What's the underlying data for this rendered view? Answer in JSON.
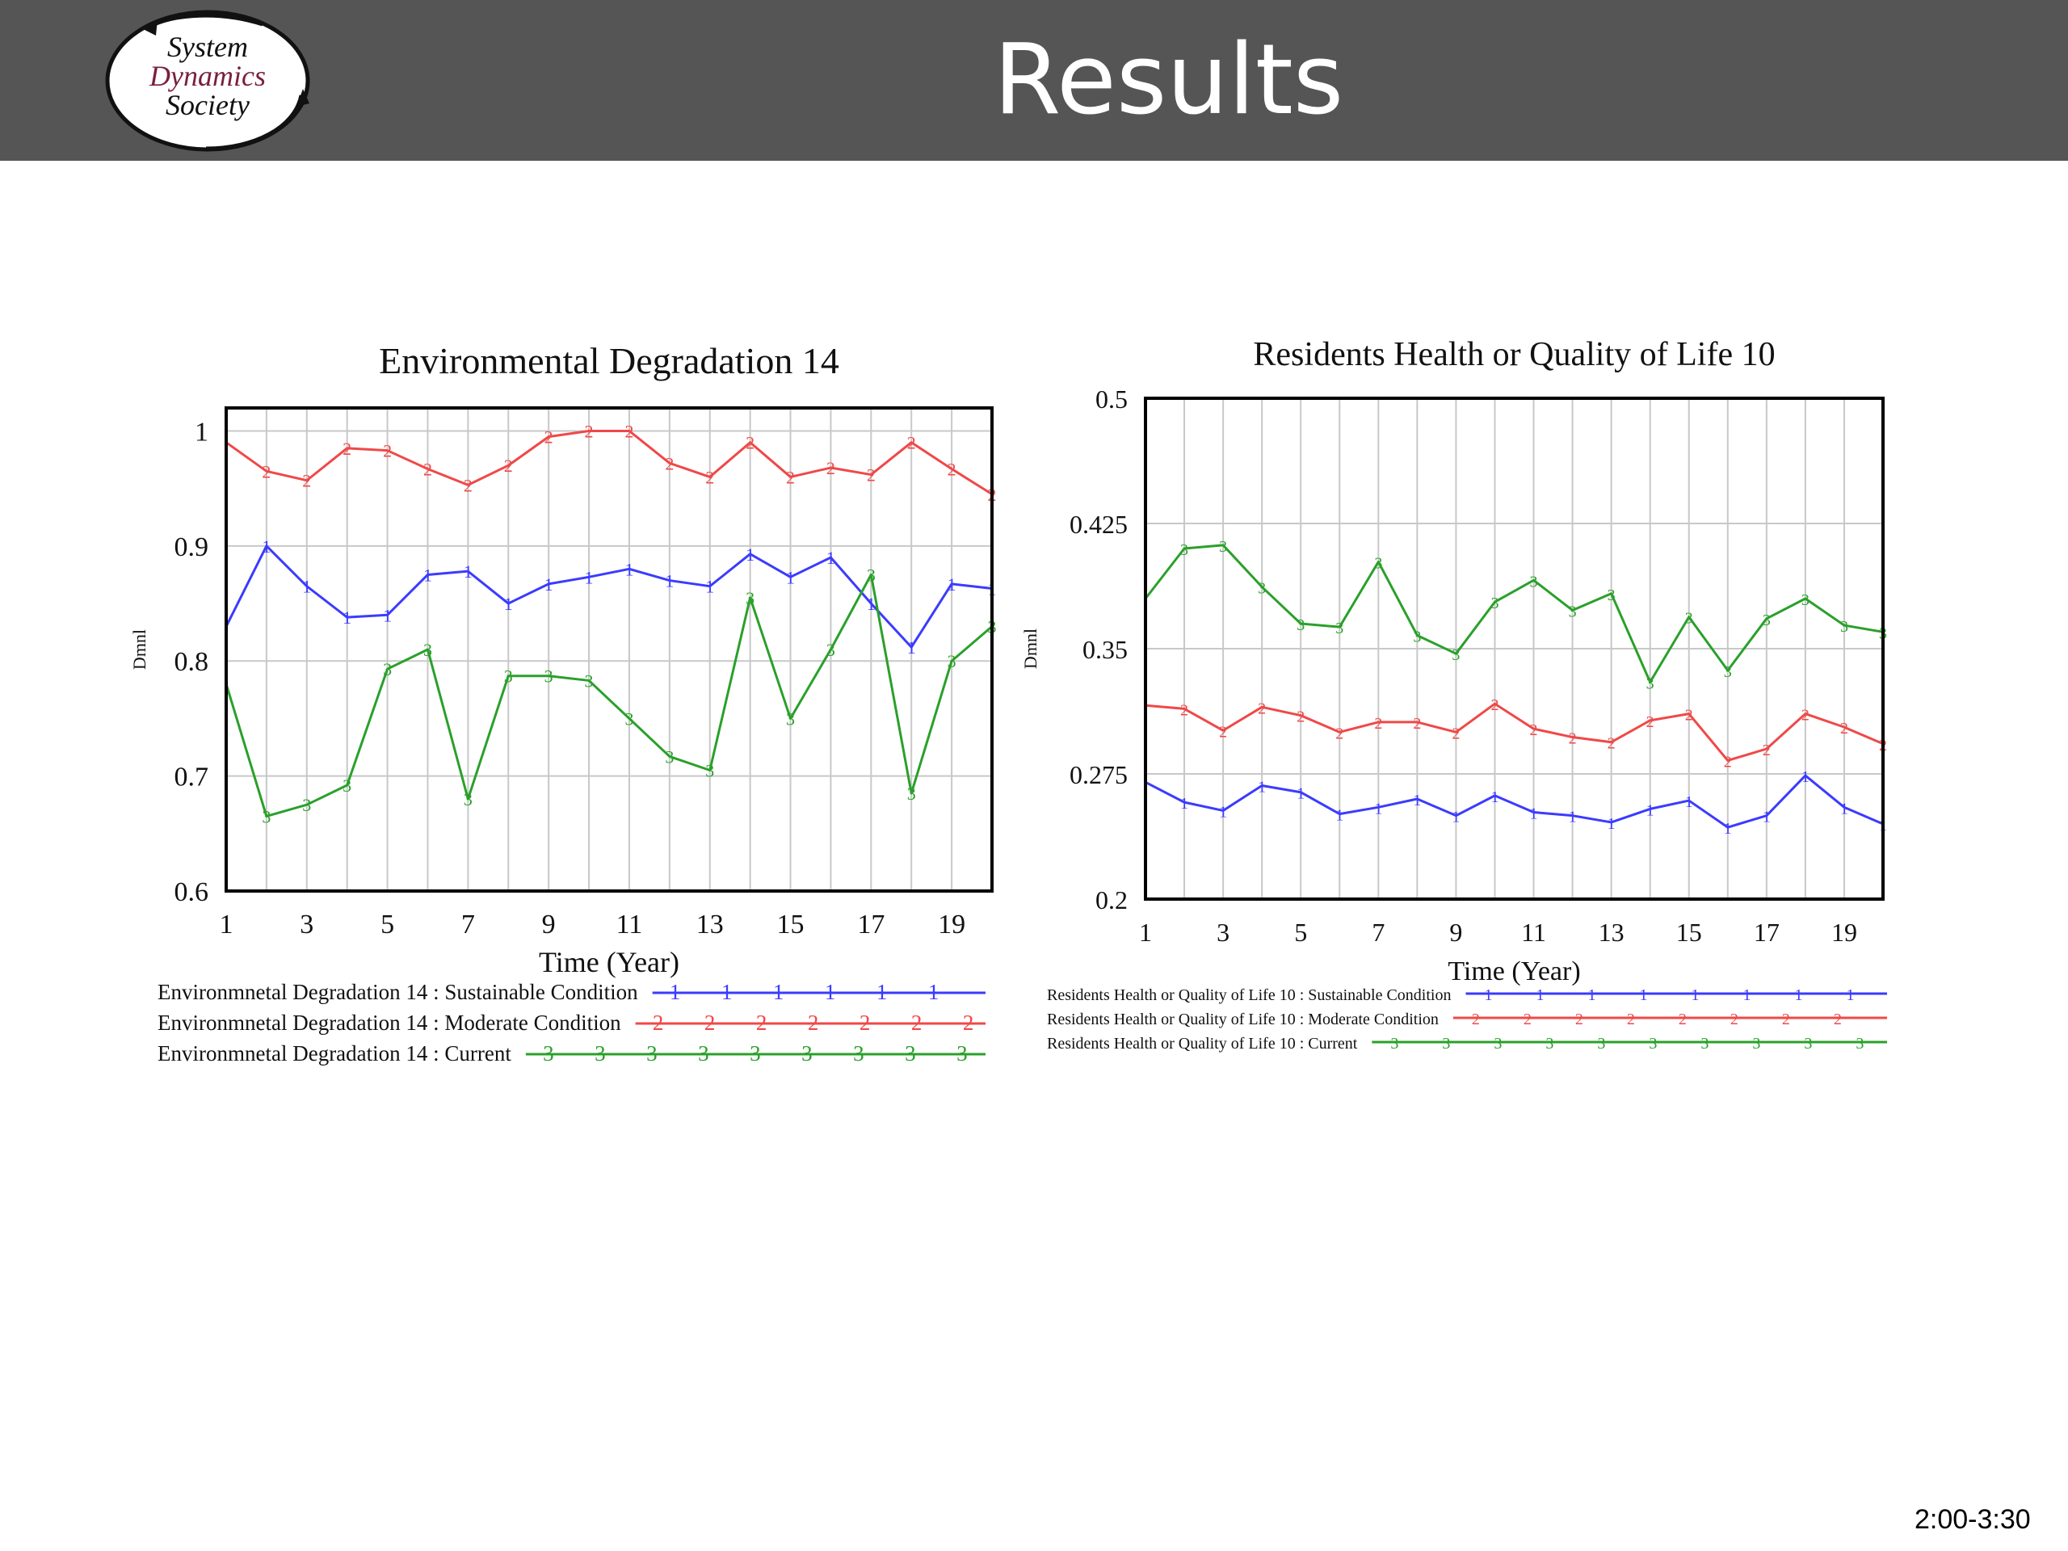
{
  "slide": {
    "title": "Results",
    "footnote": "2:00-3:30",
    "logo": {
      "line1": "System",
      "line2": "Dynamics",
      "line3": "Society"
    }
  },
  "colors": {
    "header": "#555555",
    "sustainable": "#3b3bff",
    "moderate": "#f04848",
    "current": "#2aa02a",
    "grid": "#c8c8c8"
  },
  "chart_data": [
    {
      "type": "line",
      "title": "Environmental Degradation 14",
      "xlabel": "Time (Year)",
      "ylabel": "Dmnl",
      "xlim": [
        1,
        20
      ],
      "ylim": [
        0.6,
        1.02
      ],
      "yticks": [
        0.6,
        0.7,
        0.8,
        0.9,
        1
      ],
      "ytick_labels": [
        "0.6",
        "0.7",
        "0.8",
        "0.9",
        "1"
      ],
      "xtick_labels": [
        "1",
        "3",
        "5",
        "7",
        "9",
        "11",
        "13",
        "15",
        "17",
        "19"
      ],
      "grid": true,
      "legend": "below",
      "x": [
        1,
        2,
        3,
        4,
        5,
        6,
        7,
        8,
        9,
        10,
        11,
        12,
        13,
        14,
        15,
        16,
        17,
        18,
        19,
        20
      ],
      "series": [
        {
          "name": "Environmnetal Degradation 14 : Sustainable Condition",
          "marker": "1",
          "color_key": "sustainable",
          "values": [
            0.83,
            0.9,
            0.865,
            0.838,
            0.84,
            0.875,
            0.878,
            0.85,
            0.867,
            0.873,
            0.88,
            0.87,
            0.865,
            0.893,
            0.873,
            0.89,
            0.85,
            0.812,
            0.867,
            0.863
          ]
        },
        {
          "name": "Environmnetal Degradation 14 : Moderate Condition",
          "marker": "2",
          "color_key": "moderate",
          "values": [
            0.99,
            0.965,
            0.957,
            0.985,
            0.983,
            0.967,
            0.953,
            0.97,
            0.995,
            1.0,
            1.0,
            0.972,
            0.96,
            0.99,
            0.96,
            0.968,
            0.962,
            0.99,
            0.967,
            0.945
          ]
        },
        {
          "name": "Environmnetal Degradation 14 : Current",
          "marker": "3",
          "color_key": "current",
          "values": [
            0.78,
            0.665,
            0.675,
            0.692,
            0.793,
            0.81,
            0.68,
            0.787,
            0.787,
            0.783,
            0.75,
            0.717,
            0.705,
            0.855,
            0.75,
            0.81,
            0.875,
            0.685,
            0.8,
            0.83
          ]
        }
      ]
    },
    {
      "type": "line",
      "title": "Residents Health or Quality of Life 10",
      "xlabel": "Time (Year)",
      "ylabel": "Dmnl",
      "xlim": [
        1,
        20
      ],
      "ylim": [
        0.2,
        0.5
      ],
      "yticks": [
        0.2,
        0.275,
        0.35,
        0.425,
        0.5
      ],
      "ytick_labels": [
        "0.2",
        "0.275",
        "0.35",
        "0.425",
        "0.5"
      ],
      "xtick_labels": [
        "1",
        "3",
        "5",
        "7",
        "9",
        "11",
        "13",
        "15",
        "17",
        "19"
      ],
      "grid": true,
      "legend": "below",
      "x": [
        1,
        2,
        3,
        4,
        5,
        6,
        7,
        8,
        9,
        10,
        11,
        12,
        13,
        14,
        15,
        16,
        17,
        18,
        19,
        20
      ],
      "series": [
        {
          "name": "Residents Health or Quality of Life 10 : Sustainable Condition",
          "marker": "1",
          "color_key": "sustainable",
          "values": [
            0.27,
            0.258,
            0.253,
            0.268,
            0.264,
            0.251,
            0.255,
            0.26,
            0.25,
            0.262,
            0.252,
            0.25,
            0.246,
            0.254,
            0.259,
            0.243,
            0.25,
            0.274,
            0.255,
            0.245
          ]
        },
        {
          "name": "Residents Health or Quality of Life 10 : Moderate Condition",
          "marker": "2",
          "color_key": "moderate",
          "values": [
            0.316,
            0.314,
            0.301,
            0.315,
            0.31,
            0.3,
            0.306,
            0.306,
            0.3,
            0.317,
            0.302,
            0.297,
            0.294,
            0.307,
            0.311,
            0.283,
            0.29,
            0.311,
            0.303,
            0.293
          ]
        },
        {
          "name": "Residents Health or Quality of Life 10 : Current",
          "marker": "3",
          "color_key": "current",
          "values": [
            0.38,
            0.41,
            0.412,
            0.387,
            0.365,
            0.363,
            0.402,
            0.358,
            0.347,
            0.378,
            0.391,
            0.373,
            0.383,
            0.33,
            0.369,
            0.337,
            0.368,
            0.38,
            0.364,
            0.36
          ]
        }
      ]
    }
  ]
}
